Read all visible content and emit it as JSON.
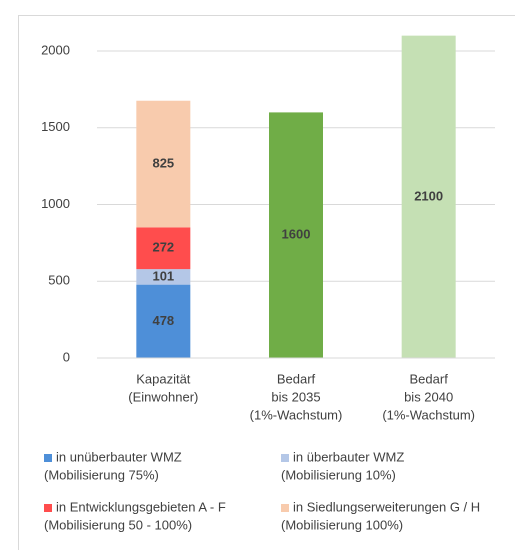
{
  "chart_data": {
    "type": "stacked_bar",
    "categories": [
      [
        "Kapazität",
        "(Einwohner)"
      ],
      [
        "Bedarf",
        "bis 2035",
        "(1%-Wachstum)"
      ],
      [
        "Bedarf",
        "bis 2040",
        "(1%-Wachstum)"
      ]
    ],
    "series": [
      {
        "name": [
          "in unüberbauter WMZ",
          "(Mobilisierung 75%)"
        ],
        "color": "#4e8fd8",
        "values": [
          478,
          null,
          null
        ]
      },
      {
        "name": [
          "in überbauter WMZ",
          "(Mobilisierung 10%)"
        ],
        "color": "#b4c7e7",
        "values": [
          101,
          null,
          null
        ]
      },
      {
        "name": [
          "in Entwicklungsgebieten A - F",
          "(Mobilisierung 50 - 100%)"
        ],
        "color": "#ff4d4d",
        "values": [
          272,
          null,
          null
        ]
      },
      {
        "name": [
          "in Siedlungserweiterungen G / H",
          "(Mobilisierung 100%)"
        ],
        "color": "#f8cbad",
        "values": [
          825,
          null,
          null
        ]
      },
      {
        "color": "#70ad47",
        "values": [
          null,
          1600,
          null
        ]
      },
      {
        "color": "#c5e0b4",
        "values": [
          null,
          null,
          2100
        ]
      }
    ],
    "ylim": [
      0,
      2000
    ],
    "yticks": [
      0,
      500,
      1000,
      1500,
      2000
    ],
    "grid": true
  }
}
